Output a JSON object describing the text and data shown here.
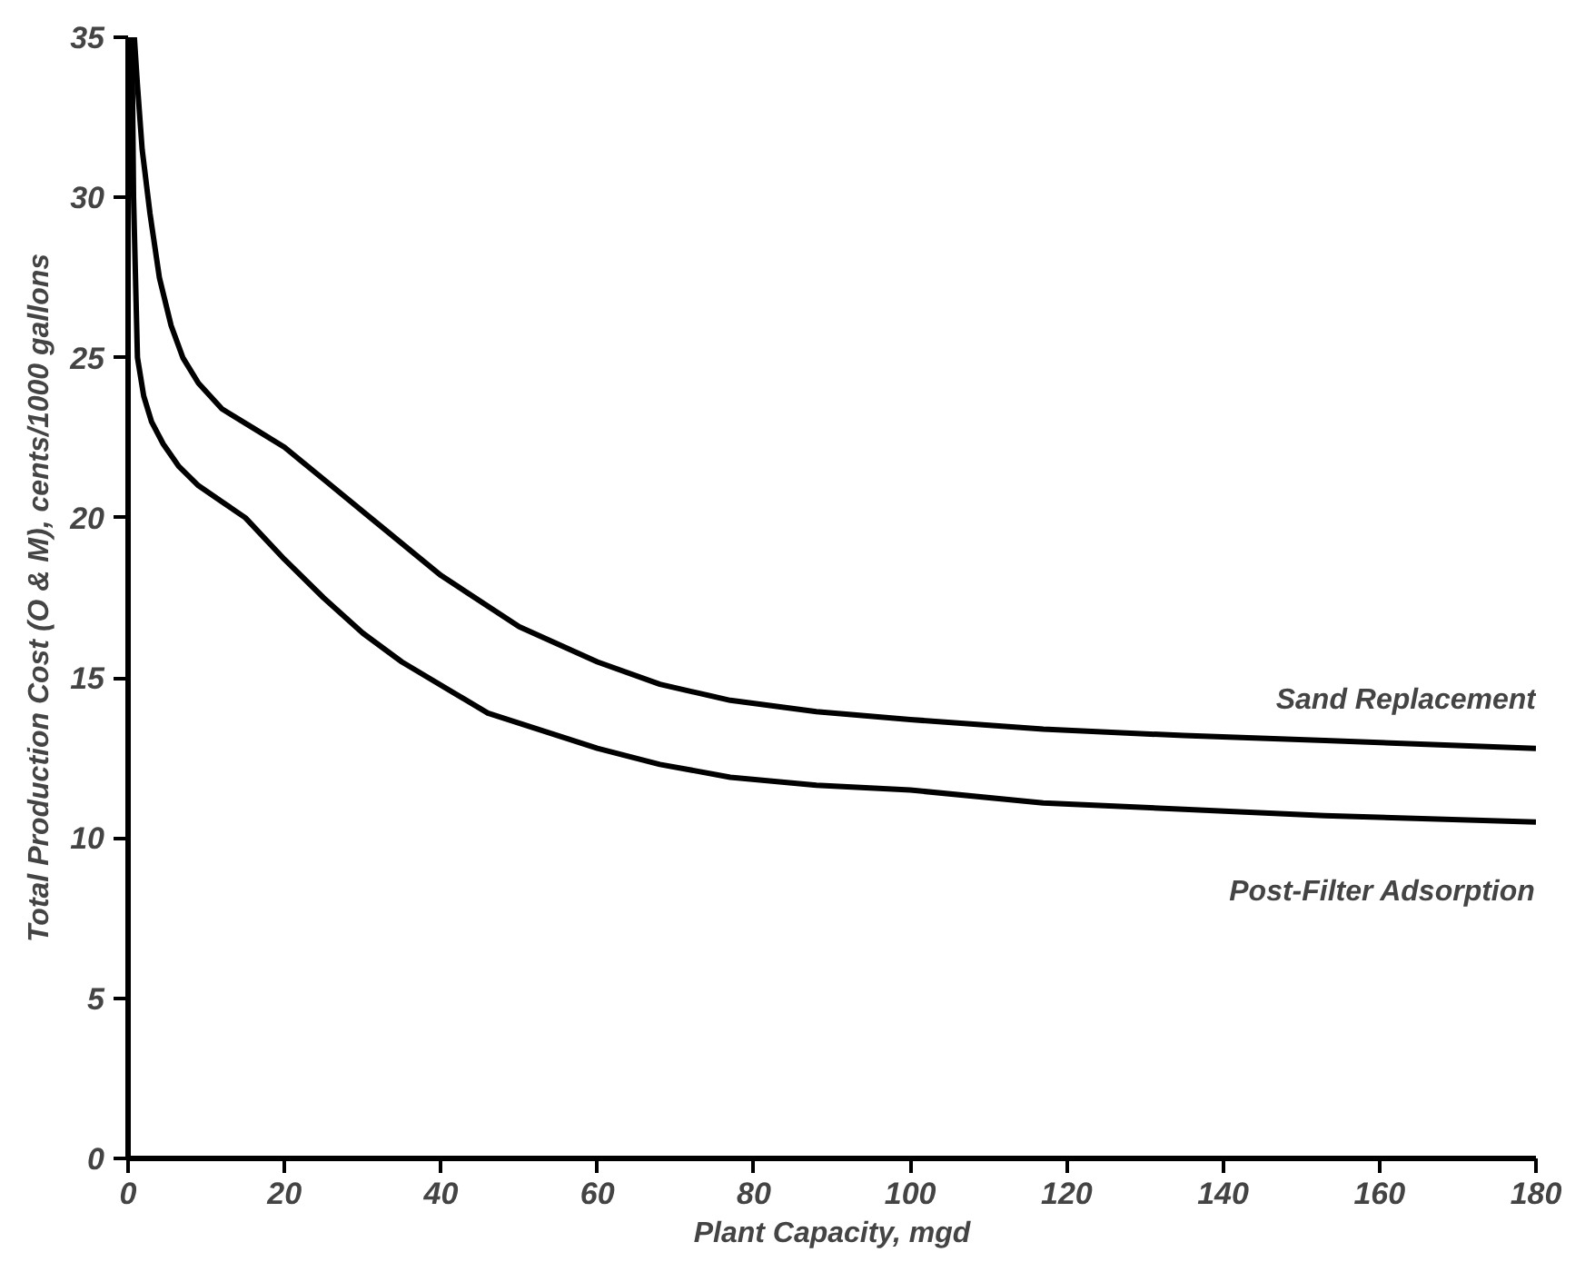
{
  "chart_data": {
    "type": "line",
    "xlabel": "Plant Capacity, mgd",
    "ylabel": "Total Production Cost (O & M), cents/1000 gallons",
    "xlim": [
      0,
      180
    ],
    "ylim": [
      0,
      35
    ],
    "xticks": [
      0,
      20,
      40,
      60,
      80,
      100,
      120,
      140,
      160,
      180
    ],
    "yticks": [
      0,
      5,
      10,
      15,
      20,
      25,
      30,
      35
    ],
    "grid": false,
    "legend": false,
    "marker": "none",
    "line_style": "solid",
    "series": [
      {
        "name": "Sand Replacement",
        "color": "#000000",
        "x": [
          0.8,
          1.2,
          1.8,
          2.8,
          4,
          5.5,
          7,
          9,
          12,
          16,
          20,
          25,
          31,
          40,
          50,
          60,
          68,
          77,
          88,
          100,
          117,
          135,
          153,
          180
        ],
        "values": [
          35,
          33.5,
          31.5,
          29.5,
          27.5,
          26,
          25,
          24.2,
          23.4,
          22.8,
          22.2,
          21.2,
          20,
          18.2,
          16.6,
          15.5,
          14.8,
          14.3,
          13.95,
          13.7,
          13.4,
          13.2,
          13.05,
          12.8
        ]
      },
      {
        "name": "Post-Filter Adsorption",
        "color": "#000000",
        "x": [
          0.5,
          0.7,
          1.2,
          2,
          3,
          4.5,
          6.5,
          9,
          12,
          15,
          20,
          25,
          30,
          35,
          46,
          60,
          68,
          77,
          88,
          100,
          117,
          135,
          153,
          180
        ],
        "values": [
          35,
          30,
          25,
          23.8,
          23,
          22.3,
          21.6,
          21,
          20.5,
          20,
          18.7,
          17.5,
          16.4,
          15.5,
          13.9,
          12.8,
          12.3,
          11.9,
          11.65,
          11.5,
          11.1,
          10.9,
          10.7,
          10.5
        ]
      }
    ]
  }
}
